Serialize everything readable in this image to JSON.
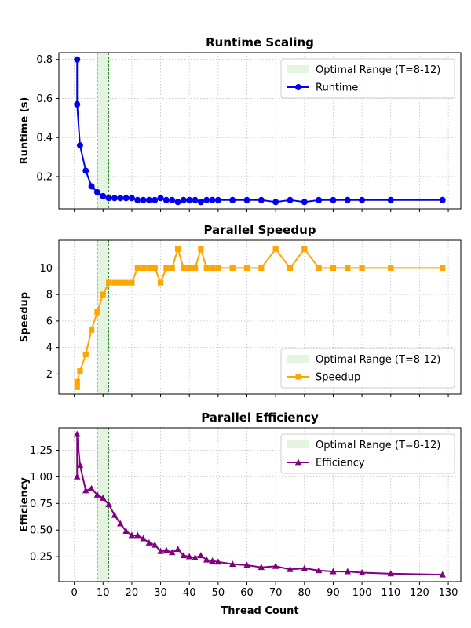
{
  "chart_data": [
    {
      "type": "line",
      "title": "Runtime Scaling",
      "xlabel": "",
      "ylabel": "Runtime (s)",
      "xlim": [
        -5.35,
        134.35
      ],
      "ylim": [
        0.035,
        0.835
      ],
      "xticks": [
        0,
        10,
        20,
        30,
        40,
        50,
        60,
        70,
        80,
        90,
        100,
        110,
        120,
        130
      ],
      "xtick_labels_visible": false,
      "yticks": [
        0.2,
        0.4,
        0.6,
        0.8
      ],
      "ytick_labels": [
        "0.2",
        "0.4",
        "0.6",
        "0.8"
      ],
      "grid": true,
      "legend_position": "top-right",
      "shaded_region": {
        "x0": 8,
        "x1": 12,
        "label": "Optimal Range (T=8-12)",
        "fill": "#e3f5e1",
        "edge": "#1a7f1a"
      },
      "series": [
        {
          "name": "Runtime",
          "color": "#0000ee",
          "marker": "circle",
          "x": [
            1,
            1,
            2,
            4,
            6,
            8,
            10,
            12,
            14,
            16,
            18,
            20,
            22,
            24,
            26,
            28,
            30,
            32,
            34,
            36,
            38,
            40,
            42,
            44,
            46,
            48,
            50,
            55,
            60,
            65,
            70,
            75,
            80,
            85,
            90,
            95,
            100,
            110,
            128
          ],
          "y": [
            0.8,
            0.57,
            0.36,
            0.23,
            0.15,
            0.12,
            0.1,
            0.09,
            0.09,
            0.09,
            0.09,
            0.09,
            0.08,
            0.08,
            0.08,
            0.08,
            0.09,
            0.08,
            0.08,
            0.07,
            0.08,
            0.08,
            0.08,
            0.07,
            0.08,
            0.08,
            0.08,
            0.08,
            0.08,
            0.08,
            0.07,
            0.08,
            0.07,
            0.08,
            0.08,
            0.08,
            0.08,
            0.08,
            0.08
          ]
        }
      ]
    },
    {
      "type": "line",
      "title": "Parallel Speedup",
      "xlabel": "",
      "ylabel": "Speedup",
      "xlim": [
        -5.35,
        134.35
      ],
      "ylim": [
        0.48,
        12.1
      ],
      "xticks": [
        0,
        10,
        20,
        30,
        40,
        50,
        60,
        70,
        80,
        90,
        100,
        110,
        120,
        130
      ],
      "xtick_labels_visible": false,
      "yticks": [
        2,
        4,
        6,
        8,
        10
      ],
      "ytick_labels": [
        "2",
        "4",
        "6",
        "8",
        "10"
      ],
      "grid": true,
      "legend_position": "lower-right",
      "shaded_region": {
        "x0": 8,
        "x1": 12,
        "label": "Optimal Range (T=8-12)",
        "fill": "#e3f5e1",
        "edge": "#1a7f1a"
      },
      "series": [
        {
          "name": "Speedup",
          "color": "#ffa500",
          "marker": "square",
          "x": [
            1,
            1,
            2,
            4,
            6,
            8,
            10,
            12,
            14,
            16,
            18,
            20,
            22,
            24,
            26,
            28,
            30,
            32,
            34,
            36,
            38,
            40,
            42,
            44,
            46,
            48,
            50,
            55,
            60,
            65,
            70,
            75,
            80,
            85,
            90,
            95,
            100,
            110,
            128
          ],
          "y": [
            1.0,
            1.4,
            2.22,
            3.48,
            5.33,
            6.67,
            8.0,
            8.89,
            8.89,
            8.89,
            8.89,
            8.89,
            10.0,
            10.0,
            10.0,
            10.0,
            8.89,
            10.0,
            10.0,
            11.43,
            10.0,
            10.0,
            10.0,
            11.43,
            10.0,
            10.0,
            10.0,
            10.0,
            10.0,
            10.0,
            11.43,
            10.0,
            11.43,
            10.0,
            10.0,
            10.0,
            10.0,
            10.0,
            10.0
          ]
        }
      ]
    },
    {
      "type": "line",
      "title": "Parallel Efficiency",
      "xlabel": "Thread Count",
      "ylabel": "Efficiency",
      "xlim": [
        -5.35,
        134.35
      ],
      "ylim": [
        0.015,
        1.46
      ],
      "xticks": [
        0,
        10,
        20,
        30,
        40,
        50,
        60,
        70,
        80,
        90,
        100,
        110,
        120,
        130
      ],
      "xtick_labels": [
        "0",
        "10",
        "20",
        "30",
        "40",
        "50",
        "60",
        "70",
        "80",
        "90",
        "100",
        "110",
        "120",
        "130"
      ],
      "xtick_labels_visible": true,
      "yticks": [
        0.25,
        0.5,
        0.75,
        1.0,
        1.25
      ],
      "ytick_labels": [
        "0.25",
        "0.50",
        "0.75",
        "1.00",
        "1.25"
      ],
      "grid": true,
      "legend_position": "top-right",
      "shaded_region": {
        "x0": 8,
        "x1": 12,
        "label": "Optimal Range (T=8-12)",
        "fill": "#e3f5e1",
        "edge": "#1a7f1a"
      },
      "series": [
        {
          "name": "Efficiency",
          "color": "#800080",
          "marker": "triangle",
          "x": [
            1,
            1,
            2,
            4,
            6,
            8,
            10,
            12,
            14,
            16,
            18,
            20,
            22,
            24,
            26,
            28,
            30,
            32,
            34,
            36,
            38,
            40,
            42,
            44,
            46,
            48,
            50,
            55,
            60,
            65,
            70,
            75,
            80,
            85,
            90,
            95,
            100,
            110,
            128
          ],
          "y": [
            1.0,
            1.4,
            1.11,
            0.87,
            0.89,
            0.83,
            0.8,
            0.74,
            0.64,
            0.56,
            0.49,
            0.45,
            0.45,
            0.42,
            0.38,
            0.36,
            0.3,
            0.31,
            0.29,
            0.32,
            0.26,
            0.25,
            0.24,
            0.26,
            0.22,
            0.21,
            0.2,
            0.18,
            0.17,
            0.15,
            0.16,
            0.13,
            0.14,
            0.12,
            0.11,
            0.11,
            0.1,
            0.09,
            0.08
          ]
        }
      ]
    }
  ]
}
